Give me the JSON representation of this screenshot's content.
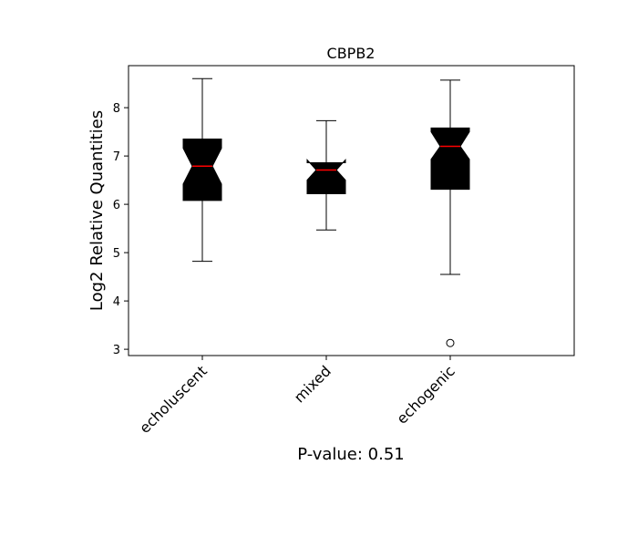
{
  "chart_data": {
    "type": "boxplot",
    "title": "CBPB2",
    "xlabel": "P-value: 0.51",
    "ylabel": "Log2 Relative Quantities",
    "categories": [
      "echoluscent",
      "mixed",
      "echogenic"
    ],
    "ylim": [
      2.87,
      8.87
    ],
    "yticks": [
      3,
      4,
      5,
      6,
      7,
      8
    ],
    "grid": false,
    "notched": true,
    "box_color": "#000000",
    "median_color": "#ff0000",
    "boxes": [
      {
        "category": "echoluscent",
        "whisker_low": 4.82,
        "q1": 6.08,
        "median": 6.79,
        "q3": 7.35,
        "whisker_high": 8.6,
        "notch_low": 6.42,
        "notch_high": 7.16,
        "outliers": []
      },
      {
        "category": "mixed",
        "whisker_low": 5.47,
        "q1": 6.22,
        "median": 6.71,
        "q3": 6.86,
        "whisker_high": 7.73,
        "notch_low": 6.5,
        "notch_high": 6.92,
        "outliers": []
      },
      {
        "category": "echogenic",
        "whisker_low": 4.55,
        "q1": 6.31,
        "median": 7.2,
        "q3": 7.58,
        "whisker_high": 8.57,
        "notch_low": 6.93,
        "notch_high": 7.5,
        "outliers": [
          3.13
        ]
      }
    ]
  }
}
